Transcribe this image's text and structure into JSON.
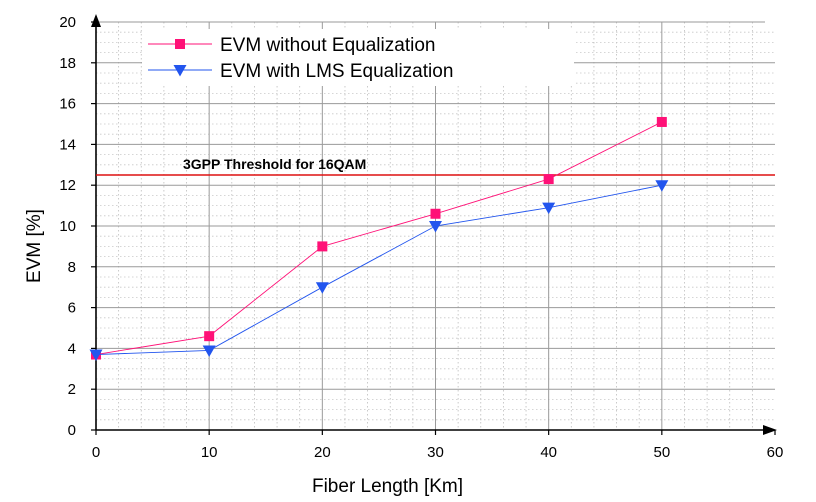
{
  "chart_data": {
    "type": "line",
    "title": "",
    "xlabel": "Fiber Length [Km]",
    "ylabel": "EVM [%]",
    "xlim": [
      0,
      60
    ],
    "ylim": [
      0,
      20
    ],
    "xticks": [
      "0",
      "10",
      "20",
      "30",
      "40",
      "50",
      "60"
    ],
    "yticks": [
      "0",
      "2",
      "4",
      "6",
      "8",
      "10",
      "12",
      "14",
      "16",
      "18",
      "20"
    ],
    "grid": true,
    "legend_position": "top-left",
    "series": [
      {
        "name": "EVM without Equalization",
        "color": "#ff1177",
        "marker": "square",
        "x": [
          0,
          10,
          20,
          30,
          40,
          50
        ],
        "values": [
          3.7,
          4.6,
          9.0,
          10.6,
          12.3,
          15.1
        ]
      },
      {
        "name": "EVM with LMS Equalization",
        "color": "#2255ee",
        "marker": "triangle-down",
        "x": [
          0,
          10,
          20,
          30,
          40,
          50
        ],
        "values": [
          3.7,
          3.9,
          7.0,
          10.0,
          10.9,
          12.0
        ]
      }
    ],
    "annotations": [
      {
        "text": "3GPP Threshold for 16QAM",
        "y": 12.5,
        "color": "#dd1111"
      }
    ]
  }
}
